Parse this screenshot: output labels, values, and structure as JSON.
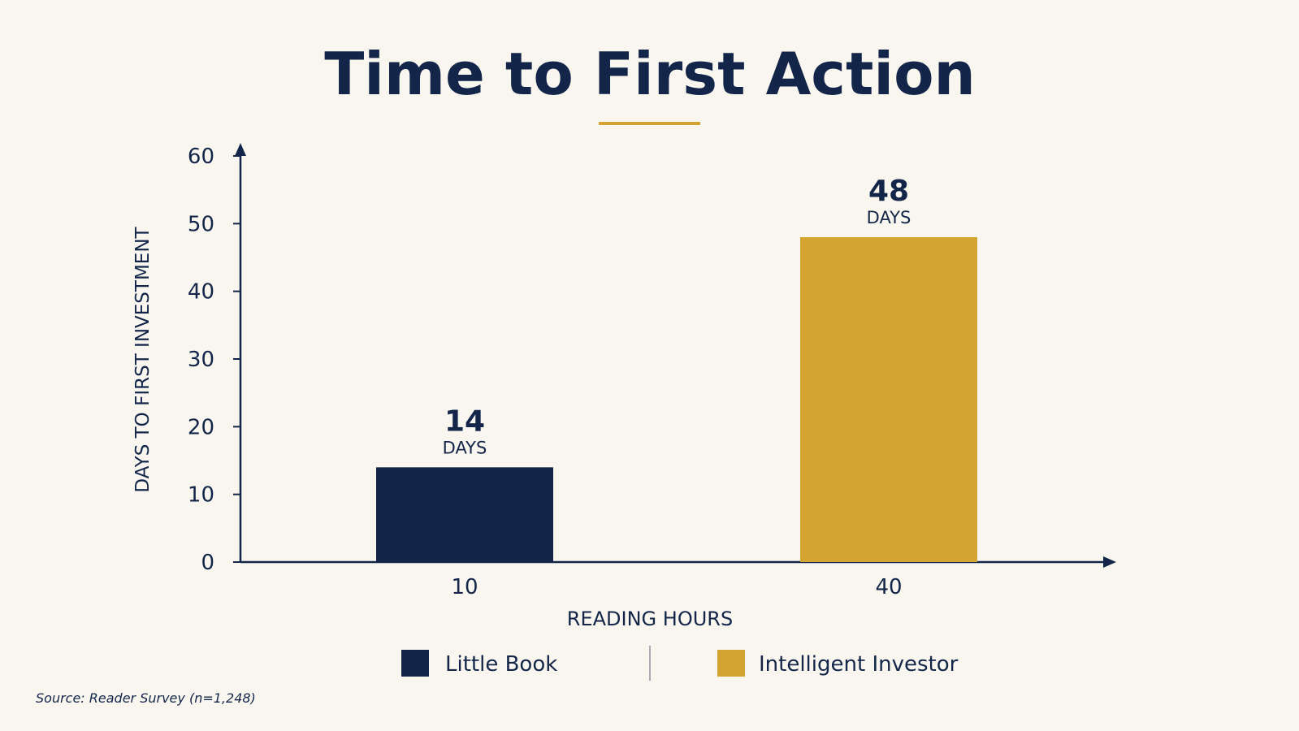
{
  "title": "Time to First Action",
  "source": "Source: Reader Survey (n=1,248)",
  "colors": {
    "background": "#f9f6ef",
    "navy": "#13264a",
    "gold": "#d3a432"
  },
  "chart_data": {
    "type": "bar",
    "title": "Time to First Action",
    "xlabel": "READING HOURS",
    "ylabel": "DAYS TO FIRST INVESTMENT",
    "categories": [
      "10",
      "40"
    ],
    "series": [
      {
        "name": "Little Book",
        "values": [
          14,
          null
        ],
        "color": "#13264a"
      },
      {
        "name": "Intelligent Investor",
        "values": [
          null,
          48
        ],
        "color": "#d3a432"
      }
    ],
    "values": [
      14,
      48
    ],
    "value_unit": "DAYS",
    "ylim": [
      0,
      60
    ],
    "yticks": [
      0,
      10,
      20,
      30,
      40,
      50,
      60
    ],
    "grid": false,
    "legend_position": "bottom-center"
  }
}
